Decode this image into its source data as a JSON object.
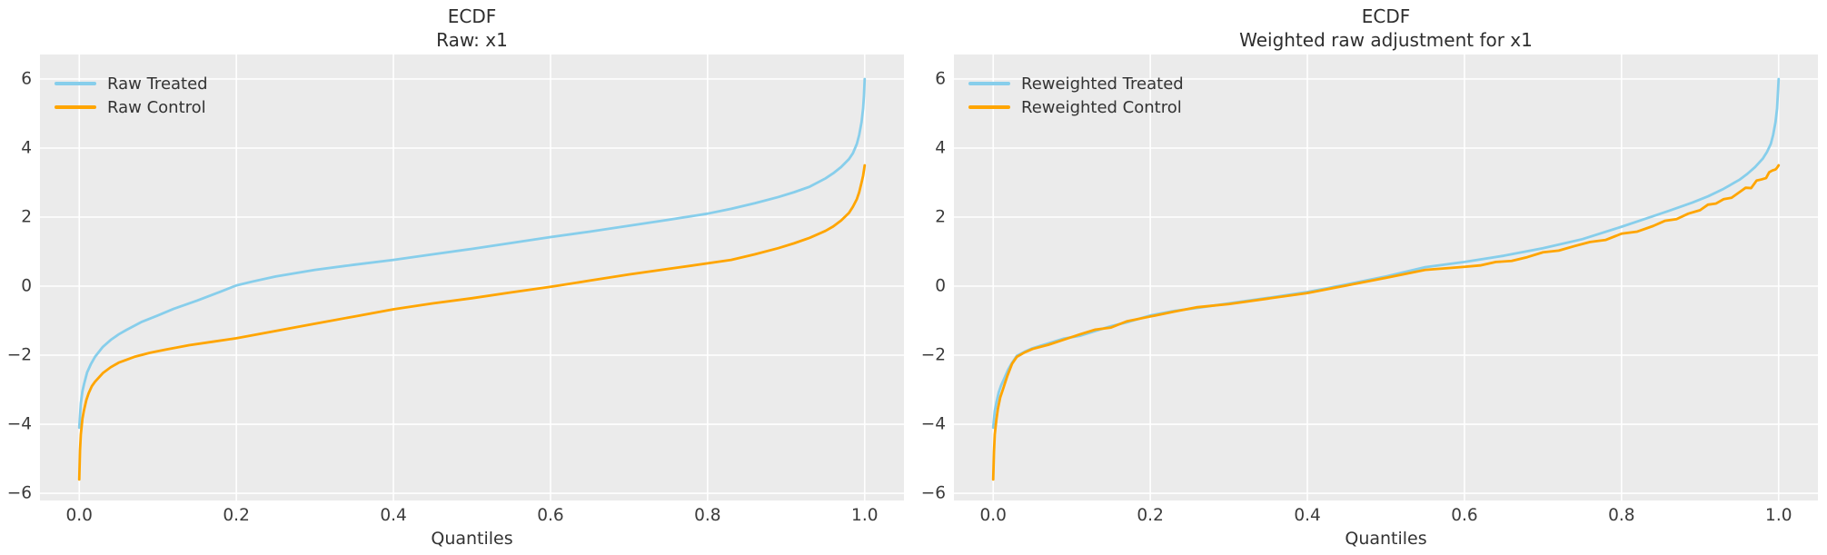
{
  "style": {
    "figure_bg": "#ffffff",
    "axes_bg": "#EBEBEB",
    "grid_color": "#FFFFFF",
    "treated_color": "#87CEEB",
    "control_color": "#FFA500",
    "text_color": "#333333"
  },
  "chart_data": [
    {
      "type": "line",
      "title": "ECDF",
      "subtitle": "Raw: x1",
      "xlabel": "Quantiles",
      "ylabel": "",
      "grid": true,
      "legend_position": "upper left",
      "xlim": [
        -0.05,
        1.05
      ],
      "ylim": [
        -6.21,
        6.71
      ],
      "x_ticks": [
        0,
        0.2,
        0.4,
        0.6,
        0.8,
        1.0
      ],
      "x_tick_labels": [
        "0.0",
        "0.2",
        "0.4",
        "0.6",
        "0.8",
        "1.0"
      ],
      "y_ticks": [
        6,
        4,
        2,
        0,
        -2,
        -4,
        -6
      ],
      "y_tick_labels": [
        "6",
        "4",
        "2",
        "0",
        "−2",
        "−4",
        "−6"
      ],
      "series": [
        {
          "name": "Raw Treated",
          "color": "#87CEEB",
          "points": [
            [
              0,
              -4.1
            ],
            [
              0.002,
              -3.4
            ],
            [
              0.004,
              -3.05
            ],
            [
              0.006,
              -2.85
            ],
            [
              0.01,
              -2.5
            ],
            [
              0.015,
              -2.25
            ],
            [
              0.02,
              -2.05
            ],
            [
              0.03,
              -1.76
            ],
            [
              0.04,
              -1.56
            ],
            [
              0.05,
              -1.4
            ],
            [
              0.06,
              -1.27
            ],
            [
              0.08,
              -1.03
            ],
            [
              0.1,
              -0.85
            ],
            [
              0.12,
              -0.66
            ],
            [
              0.15,
              -0.42
            ],
            [
              0.18,
              -0.16
            ],
            [
              0.2,
              0.02
            ],
            [
              0.22,
              0.13
            ],
            [
              0.25,
              0.28
            ],
            [
              0.3,
              0.47
            ],
            [
              0.35,
              0.62
            ],
            [
              0.4,
              0.76
            ],
            [
              0.45,
              0.92
            ],
            [
              0.5,
              1.08
            ],
            [
              0.55,
              1.25
            ],
            [
              0.6,
              1.42
            ],
            [
              0.65,
              1.58
            ],
            [
              0.7,
              1.75
            ],
            [
              0.75,
              1.92
            ],
            [
              0.8,
              2.1
            ],
            [
              0.83,
              2.24
            ],
            [
              0.86,
              2.4
            ],
            [
              0.89,
              2.58
            ],
            [
              0.91,
              2.72
            ],
            [
              0.93,
              2.88
            ],
            [
              0.95,
              3.12
            ],
            [
              0.96,
              3.27
            ],
            [
              0.97,
              3.45
            ],
            [
              0.98,
              3.68
            ],
            [
              0.985,
              3.85
            ],
            [
              0.99,
              4.12
            ],
            [
              0.993,
              4.38
            ],
            [
              0.996,
              4.75
            ],
            [
              0.998,
              5.15
            ],
            [
              0.999,
              5.5
            ],
            [
              1,
              6.0
            ]
          ]
        },
        {
          "name": "Raw Control",
          "color": "#FFA500",
          "points": [
            [
              0,
              -5.6
            ],
            [
              0.001,
              -4.75
            ],
            [
              0.002,
              -4.3
            ],
            [
              0.004,
              -3.85
            ],
            [
              0.006,
              -3.6
            ],
            [
              0.009,
              -3.3
            ],
            [
              0.012,
              -3.1
            ],
            [
              0.016,
              -2.9
            ],
            [
              0.02,
              -2.77
            ],
            [
              0.03,
              -2.52
            ],
            [
              0.04,
              -2.35
            ],
            [
              0.05,
              -2.22
            ],
            [
              0.07,
              -2.05
            ],
            [
              0.09,
              -1.93
            ],
            [
              0.11,
              -1.84
            ],
            [
              0.14,
              -1.71
            ],
            [
              0.17,
              -1.61
            ],
            [
              0.2,
              -1.51
            ],
            [
              0.25,
              -1.3
            ],
            [
              0.3,
              -1.09
            ],
            [
              0.35,
              -0.88
            ],
            [
              0.4,
              -0.67
            ],
            [
              0.45,
              -0.5
            ],
            [
              0.5,
              -0.35
            ],
            [
              0.55,
              -0.18
            ],
            [
              0.6,
              -0.02
            ],
            [
              0.65,
              0.16
            ],
            [
              0.7,
              0.34
            ],
            [
              0.75,
              0.5
            ],
            [
              0.8,
              0.66
            ],
            [
              0.83,
              0.76
            ],
            [
              0.86,
              0.92
            ],
            [
              0.89,
              1.1
            ],
            [
              0.91,
              1.24
            ],
            [
              0.93,
              1.4
            ],
            [
              0.95,
              1.6
            ],
            [
              0.96,
              1.73
            ],
            [
              0.97,
              1.9
            ],
            [
              0.98,
              2.12
            ],
            [
              0.985,
              2.3
            ],
            [
              0.99,
              2.52
            ],
            [
              0.993,
              2.72
            ],
            [
              0.996,
              3.0
            ],
            [
              0.998,
              3.2
            ],
            [
              1,
              3.5
            ]
          ]
        }
      ]
    },
    {
      "type": "line",
      "title": "ECDF",
      "subtitle": "Weighted raw adjustment for x1",
      "xlabel": "Quantiles",
      "ylabel": "",
      "grid": true,
      "legend_position": "upper left",
      "xlim": [
        -0.05,
        1.05
      ],
      "ylim": [
        -6.21,
        6.71
      ],
      "x_ticks": [
        0,
        0.2,
        0.4,
        0.6,
        0.8,
        1.0
      ],
      "x_tick_labels": [
        "0.0",
        "0.2",
        "0.4",
        "0.6",
        "0.8",
        "1.0"
      ],
      "y_ticks": [
        6,
        4,
        2,
        0,
        -2,
        -4,
        -6
      ],
      "y_tick_labels": [
        "6",
        "4",
        "2",
        "0",
        "−2",
        "−4",
        "−6"
      ],
      "series": [
        {
          "name": "Reweighted Treated",
          "color": "#87CEEB",
          "points": [
            [
              0,
              -4.1
            ],
            [
              0.002,
              -3.62
            ],
            [
              0.004,
              -3.38
            ],
            [
              0.007,
              -3.08
            ],
            [
              0.01,
              -2.88
            ],
            [
              0.014,
              -2.68
            ],
            [
              0.019,
              -2.42
            ],
            [
              0.024,
              -2.22
            ],
            [
              0.03,
              -2.02
            ],
            [
              0.04,
              -1.9
            ],
            [
              0.05,
              -1.8
            ],
            [
              0.07,
              -1.66
            ],
            [
              0.09,
              -1.52
            ],
            [
              0.11,
              -1.44
            ],
            [
              0.13,
              -1.3
            ],
            [
              0.15,
              -1.16
            ],
            [
              0.17,
              -1.05
            ],
            [
              0.2,
              -0.85
            ],
            [
              0.23,
              -0.72
            ],
            [
              0.26,
              -0.63
            ],
            [
              0.3,
              -0.5
            ],
            [
              0.35,
              -0.34
            ],
            [
              0.4,
              -0.17
            ],
            [
              0.45,
              0.05
            ],
            [
              0.5,
              0.28
            ],
            [
              0.55,
              0.55
            ],
            [
              0.6,
              0.7
            ],
            [
              0.65,
              0.88
            ],
            [
              0.7,
              1.1
            ],
            [
              0.75,
              1.36
            ],
            [
              0.8,
              1.72
            ],
            [
              0.83,
              1.95
            ],
            [
              0.86,
              2.18
            ],
            [
              0.89,
              2.42
            ],
            [
              0.91,
              2.6
            ],
            [
              0.93,
              2.82
            ],
            [
              0.95,
              3.08
            ],
            [
              0.96,
              3.25
            ],
            [
              0.97,
              3.45
            ],
            [
              0.98,
              3.7
            ],
            [
              0.985,
              3.88
            ],
            [
              0.99,
              4.12
            ],
            [
              0.993,
              4.38
            ],
            [
              0.996,
              4.75
            ],
            [
              0.998,
              5.15
            ],
            [
              1,
              6.0
            ]
          ]
        },
        {
          "name": "Reweighted Control",
          "color": "#FFA500",
          "points": [
            [
              0,
              -5.6
            ],
            [
              0.001,
              -4.8
            ],
            [
              0.002,
              -4.3
            ],
            [
              0.004,
              -3.88
            ],
            [
              0.006,
              -3.55
            ],
            [
              0.009,
              -3.22
            ],
            [
              0.013,
              -2.95
            ],
            [
              0.018,
              -2.6
            ],
            [
              0.024,
              -2.25
            ],
            [
              0.03,
              -2.05
            ],
            [
              0.04,
              -1.92
            ],
            [
              0.05,
              -1.82
            ],
            [
              0.07,
              -1.7
            ],
            [
              0.09,
              -1.55
            ],
            [
              0.11,
              -1.4
            ],
            [
              0.13,
              -1.26
            ],
            [
              0.15,
              -1.2
            ],
            [
              0.17,
              -1.02
            ],
            [
              0.2,
              -0.88
            ],
            [
              0.23,
              -0.74
            ],
            [
              0.26,
              -0.61
            ],
            [
              0.3,
              -0.52
            ],
            [
              0.35,
              -0.36
            ],
            [
              0.4,
              -0.2
            ],
            [
              0.45,
              0.02
            ],
            [
              0.5,
              0.24
            ],
            [
              0.55,
              0.47
            ],
            [
              0.6,
              0.56
            ],
            [
              0.62,
              0.6
            ],
            [
              0.64,
              0.7
            ],
            [
              0.66,
              0.73
            ],
            [
              0.68,
              0.84
            ],
            [
              0.7,
              0.98
            ],
            [
              0.72,
              1.03
            ],
            [
              0.74,
              1.16
            ],
            [
              0.76,
              1.28
            ],
            [
              0.78,
              1.34
            ],
            [
              0.8,
              1.52
            ],
            [
              0.82,
              1.58
            ],
            [
              0.84,
              1.74
            ],
            [
              0.855,
              1.89
            ],
            [
              0.87,
              1.94
            ],
            [
              0.885,
              2.1
            ],
            [
              0.9,
              2.2
            ],
            [
              0.91,
              2.36
            ],
            [
              0.92,
              2.39
            ],
            [
              0.93,
              2.52
            ],
            [
              0.94,
              2.56
            ],
            [
              0.95,
              2.72
            ],
            [
              0.958,
              2.85
            ],
            [
              0.965,
              2.84
            ],
            [
              0.972,
              3.06
            ],
            [
              0.978,
              3.09
            ],
            [
              0.984,
              3.13
            ],
            [
              0.988,
              3.3
            ],
            [
              0.992,
              3.35
            ],
            [
              0.996,
              3.38
            ],
            [
              0.998,
              3.43
            ],
            [
              1,
              3.5
            ]
          ]
        }
      ]
    }
  ]
}
